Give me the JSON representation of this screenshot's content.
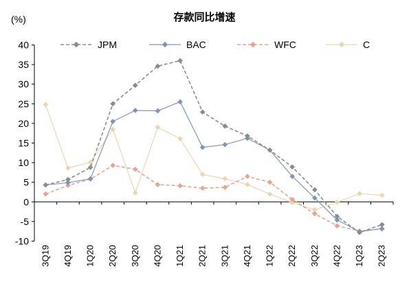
{
  "chart_data": {
    "type": "line",
    "title": "存款同比增速",
    "unit_label": "(%)",
    "ylim": [
      -10,
      40
    ],
    "yticks": [
      -10,
      -5,
      0,
      5,
      10,
      15,
      20,
      25,
      30,
      35,
      40
    ],
    "grid": false,
    "legend_position": "top",
    "categories": [
      "3Q19",
      "4Q19",
      "1Q20",
      "2Q20",
      "3Q20",
      "4Q20",
      "1Q21",
      "2Q21",
      "3Q21",
      "4Q21",
      "1Q22",
      "2Q22",
      "3Q22",
      "4Q22",
      "1Q23",
      "2Q23"
    ],
    "series": [
      {
        "name": "JPM",
        "color": "#8c8c8c",
        "dash": "dashed",
        "marker": "diamond",
        "values": [
          4.3,
          5.7,
          8.8,
          25.0,
          29.7,
          34.6,
          36.0,
          22.9,
          19.3,
          16.8,
          13.2,
          8.9,
          3.1,
          -3.7,
          -7.8,
          -5.8
        ]
      },
      {
        "name": "BAC",
        "color": "#7f95b8",
        "dash": "solid",
        "marker": "diamond",
        "values": [
          4.3,
          4.9,
          5.9,
          20.5,
          23.3,
          23.2,
          25.5,
          13.9,
          14.6,
          16.2,
          13.2,
          6.5,
          1.0,
          -4.6,
          -7.6,
          -6.8
        ]
      },
      {
        "name": "WFC",
        "color": "#e7a390",
        "dash": "dashed",
        "marker": "diamond",
        "values": [
          2.0,
          4.2,
          5.8,
          9.3,
          8.3,
          4.4,
          4.1,
          3.5,
          3.7,
          6.5,
          5.0,
          0.6,
          -3.0,
          -6.1,
          -7.4,
          -6.9
        ]
      },
      {
        "name": "C",
        "color": "#ecd6b0",
        "dash": "solid",
        "marker": "diamond",
        "values": [
          24.8,
          8.6,
          10.1,
          18.5,
          2.3,
          19.0,
          16.1,
          7.0,
          5.9,
          4.4,
          2.0,
          -0.2,
          -2.0,
          -0.1,
          2.1,
          1.7
        ]
      }
    ]
  }
}
